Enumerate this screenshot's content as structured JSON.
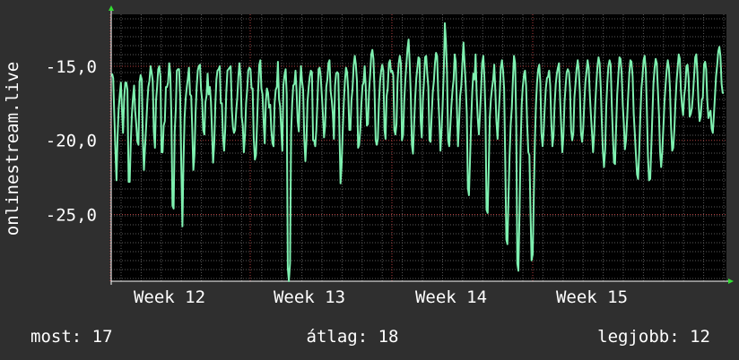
{
  "chart_data": {
    "type": "line",
    "title": "",
    "ylabel": "onlinestream.live",
    "xlabel": "",
    "x_ticks": [
      "Week 12",
      "Week 13",
      "Week 14",
      "Week 15"
    ],
    "y_ticks": [
      "-15,0",
      "-20,0",
      "-25,0"
    ],
    "ylim": [
      -29.5,
      -11.5
    ],
    "grid": true,
    "series": [
      {
        "color": "#7ff0b0",
        "values": [
          -15.5,
          -15.8,
          -18.2,
          -20.7,
          -22.7,
          -19.7,
          -17.9,
          -16.9,
          -16.1,
          -17.9,
          -19.5,
          -17.1,
          -16.1,
          -16.1,
          -16.6,
          -22.8,
          -22.8,
          -20.2,
          -18.3,
          -17.1,
          -16.3,
          -18.0,
          -18.9,
          -20.1,
          -20.3,
          -16.1,
          -15.6,
          -15.9,
          -20.0,
          -22.0,
          -20.5,
          -19.0,
          -17.5,
          -16.4,
          -16.0,
          -15.0,
          -15.4,
          -16.0,
          -19.4,
          -20.5,
          -17.3,
          -16.4,
          -15.2,
          -15.0,
          -15.7,
          -20.8,
          -20.8,
          -19.0,
          -18.7,
          -16.4,
          -16.4,
          -16.1,
          -14.8,
          -15.5,
          -18.4,
          -24.4,
          -24.6,
          -19.4,
          -17.9,
          -15.3,
          -15.2,
          -15.2,
          -17.0,
          -21.6,
          -25.8,
          -21.4,
          -18.5,
          -17.2,
          -16.4,
          -15.8,
          -15.1,
          -16.9,
          -17.0,
          -19.3,
          -22.0,
          -21.0,
          -18.1,
          -16.4,
          -15.3,
          -15.0,
          -14.9,
          -16.6,
          -17.3,
          -19.3,
          -19.6,
          -17.4,
          -17.0,
          -15.5,
          -16.9,
          -16.4,
          -17.4,
          -19.4,
          -21.5,
          -20.2,
          -17.6,
          -15.9,
          -15.3,
          -15.2,
          -15.0,
          -17.5,
          -17.5,
          -19.8,
          -20.7,
          -19.3,
          -16.8,
          -15.3,
          -15.2,
          -15.1,
          -15.0,
          -17.9,
          -19.1,
          -19.5,
          -19.3,
          -18.0,
          -17.1,
          -15.7,
          -14.8,
          -15.7,
          -18.4,
          -19.0,
          -20.8,
          -19.6,
          -17.5,
          -16.6,
          -15.3,
          -15.1,
          -15.2,
          -16.5,
          -16.5,
          -19.8,
          -21.3,
          -21.0,
          -18.9,
          -16.7,
          -14.9,
          -14.6,
          -16.5,
          -16.9,
          -18.8,
          -20.2,
          -17.4,
          -16.5,
          -16.8,
          -17.8,
          -17.6,
          -19.3,
          -20.2,
          -20.4,
          -17.5,
          -16.6,
          -16.4,
          -14.7,
          -17.2,
          -17.7,
          -19.3,
          -20.7,
          -16.3,
          -15.6,
          -15.2,
          -16.9,
          -28.6,
          -29.5,
          -28.3,
          -19.5,
          -17.5,
          -16.3,
          -16.2,
          -15.3,
          -16.7,
          -18.7,
          -19.4,
          -16.6,
          -15.0,
          -16.0,
          -16.6,
          -19.9,
          -21.4,
          -20.0,
          -17.4,
          -16.4,
          -15.7,
          -15.3,
          -15.4,
          -20.0,
          -20.0,
          -20.4,
          -19.3,
          -17.3,
          -15.2,
          -15.1,
          -15.7,
          -17.0,
          -18.3,
          -19.8,
          -19.0,
          -16.4,
          -15.9,
          -14.8,
          -14.6,
          -16.7,
          -17.3,
          -18.2,
          -19.9,
          -16.3,
          -15.5,
          -15.4,
          -15.5,
          -19.4,
          -22.9,
          -21.7,
          -19.4,
          -17.4,
          -16.0,
          -15.1,
          -15.4,
          -16.6,
          -19.3,
          -19.3,
          -17.3,
          -16.5,
          -14.9,
          -14.3,
          -14.9,
          -16.0,
          -20.5,
          -20.3,
          -19.3,
          -17.6,
          -16.3,
          -16.1,
          -15.0,
          -16.4,
          -19.0,
          -18.9,
          -16.7,
          -15.6,
          -14.2,
          -13.9,
          -14.5,
          -16.6,
          -20.0,
          -20.3,
          -19.9,
          -17.5,
          -16.0,
          -15.3,
          -14.9,
          -15.3,
          -19.3,
          -19.9,
          -17.0,
          -16.5,
          -14.8,
          -14.6,
          -15.4,
          -15.3,
          -15.6,
          -19.3,
          -19.6,
          -18.9,
          -16.0,
          -14.8,
          -14.3,
          -14.8,
          -20.0,
          -19.6,
          -17.4,
          -16.0,
          -14.9,
          -13.8,
          -13.2,
          -14.8,
          -16.9,
          -20.3,
          -20.9,
          -19.0,
          -17.2,
          -15.8,
          -15.1,
          -14.4,
          -14.5,
          -18.7,
          -19.8,
          -17.3,
          -16.1,
          -14.4,
          -14.3,
          -15.5,
          -16.4,
          -20.0,
          -20.1,
          -18.3,
          -16.8,
          -16.0,
          -14.8,
          -14.1,
          -14.3,
          -17.1,
          -18.7,
          -20.7,
          -19.4,
          -17.7,
          -15.4,
          -12.1,
          -13.3,
          -15.4,
          -20.0,
          -20.4,
          -19.1,
          -17.7,
          -16.6,
          -15.9,
          -14.2,
          -14.7,
          -17.9,
          -20.4,
          -18.8,
          -17.0,
          -16.3,
          -14.8,
          -13.4,
          -14.8,
          -16.3,
          -18.2,
          -23.2,
          -23.7,
          -21.1,
          -18.6,
          -16.7,
          -15.5,
          -15.9,
          -14.2,
          -16.9,
          -18.5,
          -19.6,
          -18.2,
          -16.6,
          -14.8,
          -14.3,
          -15.7,
          -18.1,
          -24.7,
          -24.9,
          -21.7,
          -18.4,
          -17.2,
          -16.5,
          -15.9,
          -14.9,
          -16.6,
          -18.7,
          -19.9,
          -18.3,
          -16.9,
          -15.1,
          -14.6,
          -15.3,
          -16.5,
          -21.1,
          -26.7,
          -27.0,
          -23.8,
          -21.0,
          -18.9,
          -17.8,
          -15.9,
          -14.3,
          -14.8,
          -18.9,
          -28.3,
          -28.8,
          -24.8,
          -20.4,
          -17.6,
          -16.4,
          -15.6,
          -15.3,
          -16.3,
          -18.9,
          -20.8,
          -21.0,
          -24.7,
          -28.1,
          -27.7,
          -23.8,
          -20.1,
          -17.6,
          -16.1,
          -15.2,
          -14.9,
          -16.1,
          -19.5,
          -20.4,
          -19.4,
          -17.8,
          -16.5,
          -15.8,
          -15.7,
          -15.3,
          -16.3,
          -18.9,
          -20.4,
          -19.7,
          -17.6,
          -16.2,
          -15.5,
          -15.1,
          -14.8,
          -17.3,
          -19.1,
          -20.8,
          -19.7,
          -17.4,
          -16.3,
          -15.4,
          -15.2,
          -15.4,
          -16.5,
          -19.3,
          -20.0,
          -19.5,
          -17.1,
          -16.2,
          -15.2,
          -14.6,
          -15.3,
          -16.8,
          -19.5,
          -20.1,
          -19.2,
          -17.5,
          -16.1,
          -15.4,
          -14.6,
          -15.1,
          -16.8,
          -18.2,
          -19.5,
          -20.8,
          -19.6,
          -17.6,
          -16.1,
          -15.0,
          -14.4,
          -14.8,
          -16.5,
          -18.9,
          -20.8,
          -21.8,
          -20.6,
          -17.7,
          -16.1,
          -15.0,
          -14.6,
          -14.9,
          -17.5,
          -19.6,
          -21.5,
          -21.6,
          -19.1,
          -16.9,
          -15.6,
          -14.4,
          -14.5,
          -15.4,
          -17.6,
          -18.9,
          -20.6,
          -20.0,
          -18.5,
          -16.9,
          -15.5,
          -14.6,
          -14.7,
          -15.7,
          -18.2,
          -19.5,
          -20.9,
          -22.3,
          -22.6,
          -20.8,
          -18.5,
          -16.5,
          -15.7,
          -14.6,
          -14.3,
          -15.3,
          -18.0,
          -21.1,
          -22.7,
          -22.6,
          -20.5,
          -18.3,
          -16.2,
          -15.1,
          -14.5,
          -14.8,
          -16.5,
          -18.3,
          -20.8,
          -21.8,
          -20.8,
          -19.1,
          -17.4,
          -16.3,
          -15.3,
          -14.6,
          -15.1,
          -16.5,
          -19.0,
          -20.7,
          -20.5,
          -19.3,
          -17.5,
          -16.0,
          -15.1,
          -14.2,
          -14.5,
          -16.6,
          -17.7,
          -18.3,
          -17.0,
          -16.4,
          -15.0,
          -14.9,
          -15.8,
          -18.4,
          -18.2,
          -17.8,
          -16.9,
          -15.7,
          -14.4,
          -14.2,
          -15.5,
          -17.4,
          -18.7,
          -18.4,
          -17.3,
          -17.1,
          -14.9,
          -14.7,
          -15.2,
          -17.3,
          -18.5,
          -18.2,
          -18.0,
          -19.2,
          -19.5,
          -18.3,
          -17.0,
          -15.7,
          -14.9,
          -14.0,
          -13.7,
          -14.3,
          -16.2,
          -16.8,
          -16.8
        ]
      }
    ],
    "stats": [
      {
        "label": "most:",
        "value": "17"
      },
      {
        "label": "átlag:",
        "value": "18"
      },
      {
        "label": "legjobb:",
        "value": "12"
      }
    ]
  }
}
